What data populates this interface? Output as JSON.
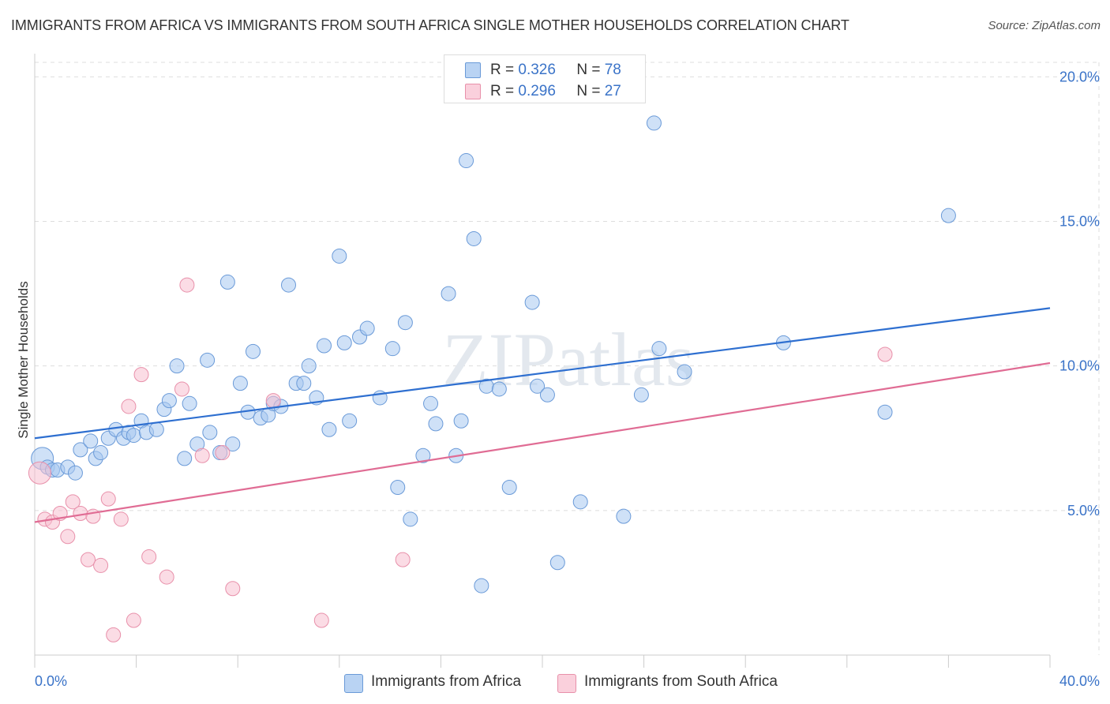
{
  "title": "IMMIGRANTS FROM AFRICA VS IMMIGRANTS FROM SOUTH AFRICA SINGLE MOTHER HOUSEHOLDS CORRELATION CHART",
  "source": "Source: ZipAtlas.com",
  "watermark": "ZIPatlas",
  "legend": {
    "r_label": "R =",
    "n_label": "N =",
    "rows": [
      {
        "r": "0.326",
        "n": "78"
      },
      {
        "r": "0.296",
        "n": "27"
      }
    ]
  },
  "colors": {
    "blue_fill": "#a8c8f0",
    "blue_stroke": "#6a9ad8",
    "blue_line": "#2e6fd0",
    "pink_fill": "#f8c0d0",
    "pink_stroke": "#e890aa",
    "pink_line": "#e06c94",
    "tick_text": "#3a73c8",
    "grid": "#dddddd",
    "axis": "#cccccc"
  },
  "chart_data": {
    "type": "scatter",
    "title": "IMMIGRANTS FROM AFRICA VS IMMIGRANTS FROM SOUTH AFRICA SINGLE MOTHER HOUSEHOLDS CORRELATION CHART",
    "xlabel": "",
    "ylabel": "Single Mother Households",
    "xlim": [
      0,
      40
    ],
    "ylim": [
      0,
      20.5
    ],
    "x_tick_labels": [
      "0.0%",
      "40.0%"
    ],
    "y_ticks": [
      5,
      10,
      15,
      20
    ],
    "y_tick_labels": [
      "5.0%",
      "10.0%",
      "15.0%",
      "20.0%"
    ],
    "grid": true,
    "legend_position": "top-center",
    "series": [
      {
        "name": "Immigrants from Africa",
        "R": 0.326,
        "N": 78,
        "trend": {
          "x0": 0,
          "y0": 7.5,
          "x1": 40,
          "y1": 12.0
        },
        "points": [
          [
            0.3,
            6.8
          ],
          [
            0.5,
            6.5
          ],
          [
            0.7,
            6.4
          ],
          [
            0.9,
            6.4
          ],
          [
            1.3,
            6.5
          ],
          [
            1.6,
            6.3
          ],
          [
            1.8,
            7.1
          ],
          [
            2.2,
            7.4
          ],
          [
            2.4,
            6.8
          ],
          [
            2.6,
            7.0
          ],
          [
            2.9,
            7.5
          ],
          [
            3.2,
            7.8
          ],
          [
            3.5,
            7.5
          ],
          [
            3.7,
            7.7
          ],
          [
            3.9,
            7.6
          ],
          [
            4.2,
            8.1
          ],
          [
            4.4,
            7.7
          ],
          [
            4.8,
            7.8
          ],
          [
            5.1,
            8.5
          ],
          [
            5.3,
            8.8
          ],
          [
            5.6,
            10.0
          ],
          [
            5.9,
            6.8
          ],
          [
            6.1,
            8.7
          ],
          [
            6.4,
            7.3
          ],
          [
            6.8,
            10.2
          ],
          [
            6.9,
            7.7
          ],
          [
            7.3,
            7.0
          ],
          [
            7.6,
            12.9
          ],
          [
            7.8,
            7.3
          ],
          [
            8.1,
            9.4
          ],
          [
            8.4,
            8.4
          ],
          [
            8.6,
            10.5
          ],
          [
            8.9,
            8.2
          ],
          [
            9.2,
            8.3
          ],
          [
            9.4,
            8.7
          ],
          [
            9.7,
            8.6
          ],
          [
            10.0,
            12.8
          ],
          [
            10.3,
            9.4
          ],
          [
            10.6,
            9.4
          ],
          [
            10.8,
            10.0
          ],
          [
            11.1,
            8.9
          ],
          [
            11.4,
            10.7
          ],
          [
            11.6,
            7.8
          ],
          [
            12.0,
            13.8
          ],
          [
            12.2,
            10.8
          ],
          [
            12.4,
            8.1
          ],
          [
            12.8,
            11.0
          ],
          [
            13.1,
            11.3
          ],
          [
            13.6,
            8.9
          ],
          [
            14.1,
            10.6
          ],
          [
            14.3,
            5.8
          ],
          [
            14.6,
            11.5
          ],
          [
            14.8,
            4.7
          ],
          [
            15.3,
            6.9
          ],
          [
            15.6,
            8.7
          ],
          [
            15.8,
            8.0
          ],
          [
            16.3,
            12.5
          ],
          [
            16.6,
            6.9
          ],
          [
            16.8,
            8.1
          ],
          [
            17.0,
            17.1
          ],
          [
            17.3,
            14.4
          ],
          [
            17.8,
            9.3
          ],
          [
            18.3,
            9.2
          ],
          [
            18.7,
            5.8
          ],
          [
            19.6,
            12.2
          ],
          [
            19.8,
            9.3
          ],
          [
            20.2,
            9.0
          ],
          [
            20.6,
            3.2
          ],
          [
            21.5,
            5.3
          ],
          [
            23.2,
            4.8
          ],
          [
            23.9,
            9.0
          ],
          [
            24.4,
            18.4
          ],
          [
            24.6,
            10.6
          ],
          [
            25.6,
            9.8
          ],
          [
            29.5,
            10.8
          ],
          [
            33.5,
            8.4
          ],
          [
            36.0,
            15.2
          ],
          [
            17.6,
            2.4
          ]
        ]
      },
      {
        "name": "Immigrants from South Africa",
        "R": 0.296,
        "N": 27,
        "trend": {
          "x0": 0,
          "y0": 4.6,
          "x1": 40,
          "y1": 10.1
        },
        "points": [
          [
            0.2,
            6.3
          ],
          [
            0.4,
            4.7
          ],
          [
            0.7,
            4.6
          ],
          [
            1.0,
            4.9
          ],
          [
            1.3,
            4.1
          ],
          [
            1.5,
            5.3
          ],
          [
            1.8,
            4.9
          ],
          [
            2.1,
            3.3
          ],
          [
            2.3,
            4.8
          ],
          [
            2.6,
            3.1
          ],
          [
            2.9,
            5.4
          ],
          [
            3.1,
            0.7
          ],
          [
            3.4,
            4.7
          ],
          [
            3.7,
            8.6
          ],
          [
            3.9,
            1.2
          ],
          [
            4.2,
            9.7
          ],
          [
            4.5,
            3.4
          ],
          [
            5.2,
            2.7
          ],
          [
            5.8,
            9.2
          ],
          [
            6.0,
            12.8
          ],
          [
            6.6,
            6.9
          ],
          [
            7.4,
            7.0
          ],
          [
            7.8,
            2.3
          ],
          [
            9.4,
            8.8
          ],
          [
            11.3,
            1.2
          ],
          [
            14.5,
            3.3
          ],
          [
            33.5,
            10.4
          ]
        ]
      }
    ]
  }
}
